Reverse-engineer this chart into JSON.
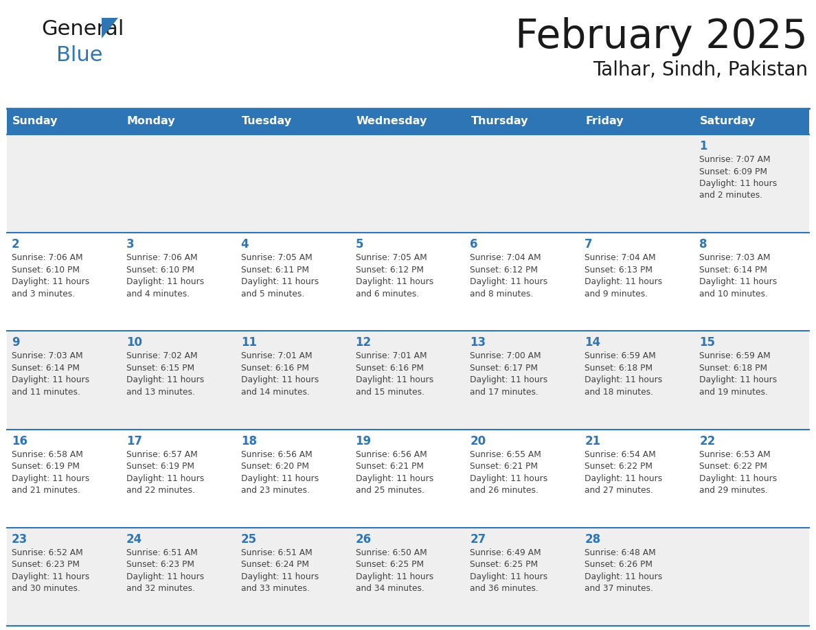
{
  "title": "February 2025",
  "subtitle": "Talhar, Sindh, Pakistan",
  "header_color": "#2E75B6",
  "header_text_color": "#FFFFFF",
  "cell_bg_odd": "#EFEFEF",
  "cell_bg_even": "#FFFFFF",
  "day_number_color": "#2E75B6",
  "text_color": "#404040",
  "line_color": "#2E75B6",
  "days_of_week": [
    "Sunday",
    "Monday",
    "Tuesday",
    "Wednesday",
    "Thursday",
    "Friday",
    "Saturday"
  ],
  "weeks": [
    [
      {
        "day": null,
        "info": null
      },
      {
        "day": null,
        "info": null
      },
      {
        "day": null,
        "info": null
      },
      {
        "day": null,
        "info": null
      },
      {
        "day": null,
        "info": null
      },
      {
        "day": null,
        "info": null
      },
      {
        "day": 1,
        "info": "Sunrise: 7:07 AM\nSunset: 6:09 PM\nDaylight: 11 hours\nand 2 minutes."
      }
    ],
    [
      {
        "day": 2,
        "info": "Sunrise: 7:06 AM\nSunset: 6:10 PM\nDaylight: 11 hours\nand 3 minutes."
      },
      {
        "day": 3,
        "info": "Sunrise: 7:06 AM\nSunset: 6:10 PM\nDaylight: 11 hours\nand 4 minutes."
      },
      {
        "day": 4,
        "info": "Sunrise: 7:05 AM\nSunset: 6:11 PM\nDaylight: 11 hours\nand 5 minutes."
      },
      {
        "day": 5,
        "info": "Sunrise: 7:05 AM\nSunset: 6:12 PM\nDaylight: 11 hours\nand 6 minutes."
      },
      {
        "day": 6,
        "info": "Sunrise: 7:04 AM\nSunset: 6:12 PM\nDaylight: 11 hours\nand 8 minutes."
      },
      {
        "day": 7,
        "info": "Sunrise: 7:04 AM\nSunset: 6:13 PM\nDaylight: 11 hours\nand 9 minutes."
      },
      {
        "day": 8,
        "info": "Sunrise: 7:03 AM\nSunset: 6:14 PM\nDaylight: 11 hours\nand 10 minutes."
      }
    ],
    [
      {
        "day": 9,
        "info": "Sunrise: 7:03 AM\nSunset: 6:14 PM\nDaylight: 11 hours\nand 11 minutes."
      },
      {
        "day": 10,
        "info": "Sunrise: 7:02 AM\nSunset: 6:15 PM\nDaylight: 11 hours\nand 13 minutes."
      },
      {
        "day": 11,
        "info": "Sunrise: 7:01 AM\nSunset: 6:16 PM\nDaylight: 11 hours\nand 14 minutes."
      },
      {
        "day": 12,
        "info": "Sunrise: 7:01 AM\nSunset: 6:16 PM\nDaylight: 11 hours\nand 15 minutes."
      },
      {
        "day": 13,
        "info": "Sunrise: 7:00 AM\nSunset: 6:17 PM\nDaylight: 11 hours\nand 17 minutes."
      },
      {
        "day": 14,
        "info": "Sunrise: 6:59 AM\nSunset: 6:18 PM\nDaylight: 11 hours\nand 18 minutes."
      },
      {
        "day": 15,
        "info": "Sunrise: 6:59 AM\nSunset: 6:18 PM\nDaylight: 11 hours\nand 19 minutes."
      }
    ],
    [
      {
        "day": 16,
        "info": "Sunrise: 6:58 AM\nSunset: 6:19 PM\nDaylight: 11 hours\nand 21 minutes."
      },
      {
        "day": 17,
        "info": "Sunrise: 6:57 AM\nSunset: 6:19 PM\nDaylight: 11 hours\nand 22 minutes."
      },
      {
        "day": 18,
        "info": "Sunrise: 6:56 AM\nSunset: 6:20 PM\nDaylight: 11 hours\nand 23 minutes."
      },
      {
        "day": 19,
        "info": "Sunrise: 6:56 AM\nSunset: 6:21 PM\nDaylight: 11 hours\nand 25 minutes."
      },
      {
        "day": 20,
        "info": "Sunrise: 6:55 AM\nSunset: 6:21 PM\nDaylight: 11 hours\nand 26 minutes."
      },
      {
        "day": 21,
        "info": "Sunrise: 6:54 AM\nSunset: 6:22 PM\nDaylight: 11 hours\nand 27 minutes."
      },
      {
        "day": 22,
        "info": "Sunrise: 6:53 AM\nSunset: 6:22 PM\nDaylight: 11 hours\nand 29 minutes."
      }
    ],
    [
      {
        "day": 23,
        "info": "Sunrise: 6:52 AM\nSunset: 6:23 PM\nDaylight: 11 hours\nand 30 minutes."
      },
      {
        "day": 24,
        "info": "Sunrise: 6:51 AM\nSunset: 6:23 PM\nDaylight: 11 hours\nand 32 minutes."
      },
      {
        "day": 25,
        "info": "Sunrise: 6:51 AM\nSunset: 6:24 PM\nDaylight: 11 hours\nand 33 minutes."
      },
      {
        "day": 26,
        "info": "Sunrise: 6:50 AM\nSunset: 6:25 PM\nDaylight: 11 hours\nand 34 minutes."
      },
      {
        "day": 27,
        "info": "Sunrise: 6:49 AM\nSunset: 6:25 PM\nDaylight: 11 hours\nand 36 minutes."
      },
      {
        "day": 28,
        "info": "Sunrise: 6:48 AM\nSunset: 6:26 PM\nDaylight: 11 hours\nand 37 minutes."
      },
      {
        "day": null,
        "info": null
      }
    ]
  ]
}
